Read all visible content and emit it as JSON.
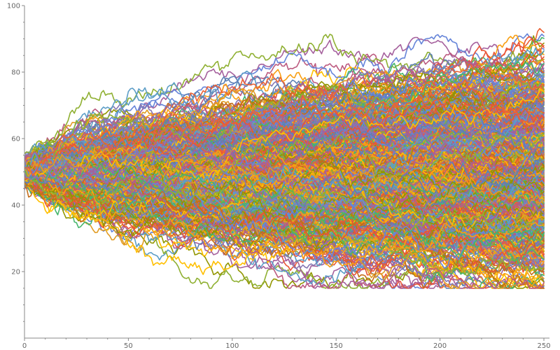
{
  "chart_data": {
    "type": "line",
    "title": "",
    "xlabel": "",
    "ylabel": "",
    "xlim": [
      0,
      250
    ],
    "ylim": [
      0,
      100
    ],
    "x_ticks": [
      0,
      50,
      100,
      150,
      200,
      250
    ],
    "y_ticks": [
      20,
      40,
      60,
      80,
      100
    ],
    "grid": false,
    "legend": "none",
    "palette": [
      "#5E81B5",
      "#E19C24",
      "#8FB032",
      "#EB6235",
      "#8778B3",
      "#C56E1A",
      "#5D9EC7",
      "#FFBF00",
      "#A5609D",
      "#929600",
      "#E95536",
      "#6685D9",
      "#F89F13",
      "#BC5B80",
      "#47B66D"
    ],
    "series_count": 800,
    "series_note_start_value": 50,
    "x": [
      0,
      25,
      50,
      75,
      100,
      125,
      150,
      175,
      200,
      225,
      250
    ],
    "series": [
      {
        "values": [
          50,
          58,
          67,
          76,
          82,
          88,
          96,
          99,
          100,
          100,
          100
        ]
      },
      {
        "values": [
          50,
          57,
          65,
          72,
          78,
          84,
          90,
          94,
          97,
          99,
          100
        ]
      },
      {
        "values": [
          50,
          56,
          62,
          67,
          71,
          75,
          79,
          82,
          85,
          87,
          89
        ]
      },
      {
        "values": [
          50,
          55,
          60,
          64,
          67,
          70,
          73,
          75,
          77,
          79,
          80
        ]
      },
      {
        "values": [
          50,
          54,
          57,
          60,
          62,
          64,
          66,
          68,
          69,
          70,
          71
        ]
      },
      {
        "values": [
          50,
          53,
          55,
          57,
          58,
          59,
          60,
          61,
          62,
          63,
          63
        ]
      },
      {
        "values": [
          50,
          52,
          53,
          54,
          54,
          55,
          55,
          56,
          56,
          56,
          57
        ]
      },
      {
        "values": [
          50,
          51,
          51,
          51,
          51,
          51,
          51,
          51,
          51,
          51,
          51
        ]
      },
      {
        "values": [
          50,
          49,
          49,
          48,
          48,
          47,
          47,
          47,
          46,
          46,
          46
        ]
      },
      {
        "values": [
          50,
          48,
          47,
          46,
          45,
          44,
          43,
          42,
          42,
          41,
          41
        ]
      },
      {
        "values": [
          50,
          47,
          45,
          43,
          41,
          40,
          39,
          38,
          37,
          37,
          36
        ]
      },
      {
        "values": [
          50,
          46,
          43,
          40,
          38,
          37,
          35,
          34,
          33,
          32,
          32
        ]
      },
      {
        "values": [
          50,
          45,
          41,
          38,
          35,
          33,
          32,
          30,
          29,
          29,
          28
        ]
      },
      {
        "values": [
          50,
          44,
          39,
          35,
          32,
          30,
          28,
          27,
          26,
          25,
          25
        ]
      },
      {
        "values": [
          50,
          43,
          37,
          32,
          29,
          27,
          25,
          24,
          23,
          22,
          22
        ]
      },
      {
        "values": [
          50,
          42,
          35,
          30,
          26,
          24,
          22,
          21,
          20,
          19,
          19
        ]
      }
    ]
  }
}
